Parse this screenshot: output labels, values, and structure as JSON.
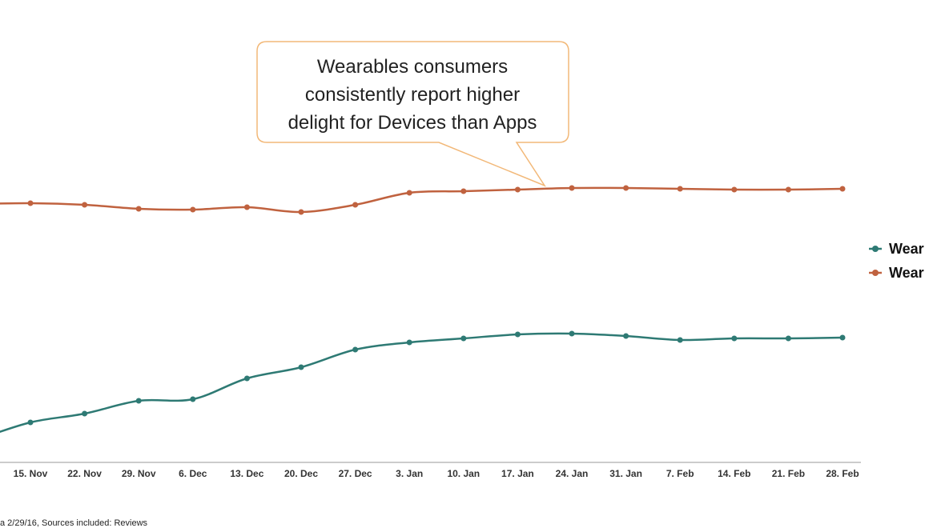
{
  "chart_data": {
    "type": "line",
    "annotation": [
      "Wearables consumers",
      "consistently report higher",
      "delight for Devices than Apps"
    ],
    "categories": [
      null,
      "15. Nov",
      "22. Nov",
      "29. Nov",
      "6. Dec",
      "13. Dec",
      "20. Dec",
      "27. Dec",
      "3. Jan",
      "10. Jan",
      "17. Jan",
      "24. Jan",
      "31. Jan",
      "7. Feb",
      "14. Feb",
      "21. Feb",
      "28. Feb"
    ],
    "series": [
      {
        "name": "Wear",
        "color": "#2e7a74",
        "values": [
          7.5,
          13,
          15.75,
          19.75,
          20.25,
          26.75,
          30.25,
          35.75,
          38,
          39.25,
          40.5,
          40.75,
          40,
          38.75,
          39.25,
          39.25,
          39.5
        ]
      },
      {
        "name": "Wear",
        "color": "#c0623f",
        "values": [
          81.25,
          81.5,
          81,
          79.75,
          79.5,
          80.25,
          78.75,
          81,
          84.75,
          85.25,
          85.75,
          86.25,
          86.25,
          86,
          85.75,
          85.75,
          86
        ]
      }
    ],
    "ylim": [
      0,
      100
    ],
    "footnote": "a 2/29/16, Sources included: Reviews"
  }
}
